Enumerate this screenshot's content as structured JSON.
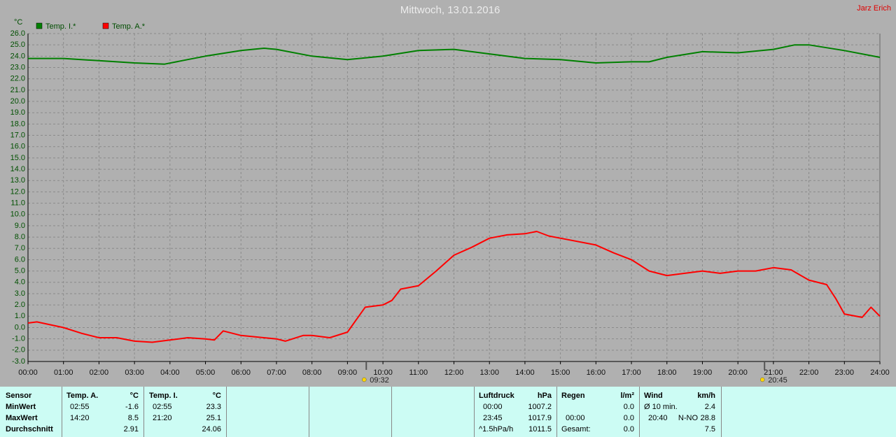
{
  "chart_data": {
    "type": "line",
    "title": "Mittwoch, 13.01.2016",
    "author": "Jarz Erich",
    "y_label": "°C",
    "xlim": [
      0,
      24
    ],
    "xticks": [
      {
        "value": 0,
        "label": "00:00"
      },
      {
        "value": 1,
        "label": "01:00"
      },
      {
        "value": 2,
        "label": "02:00"
      },
      {
        "value": 3,
        "label": "03:00"
      },
      {
        "value": 4,
        "label": "04:00"
      },
      {
        "value": 5,
        "label": "05:00"
      },
      {
        "value": 6,
        "label": "06:00"
      },
      {
        "value": 7,
        "label": "07:00"
      },
      {
        "value": 8,
        "label": "08:00"
      },
      {
        "value": 9,
        "label": "09:00"
      },
      {
        "value": 10,
        "label": "10:00"
      },
      {
        "value": 11,
        "label": "11:00"
      },
      {
        "value": 12,
        "label": "12:00"
      },
      {
        "value": 13,
        "label": "13:00"
      },
      {
        "value": 14,
        "label": "14:00"
      },
      {
        "value": 15,
        "label": "15:00"
      },
      {
        "value": 16,
        "label": "16:00"
      },
      {
        "value": 17,
        "label": "17:00"
      },
      {
        "value": 18,
        "label": "18:00"
      },
      {
        "value": 19,
        "label": "19:00"
      },
      {
        "value": 20,
        "label": "20:00"
      },
      {
        "value": 21,
        "label": "21:00"
      },
      {
        "value": 22,
        "label": "22:00"
      },
      {
        "value": 23,
        "label": "23:00"
      },
      {
        "value": 24,
        "label": "24:00"
      }
    ],
    "ylim": [
      -3,
      26
    ],
    "yticks": [
      {
        "value": -3,
        "label": "-3.0"
      },
      {
        "value": -2,
        "label": "-2.0"
      },
      {
        "value": -1,
        "label": "-1.0"
      },
      {
        "value": 0,
        "label": "0.0"
      },
      {
        "value": 1,
        "label": "1.0"
      },
      {
        "value": 2,
        "label": "2.0"
      },
      {
        "value": 3,
        "label": "3.0"
      },
      {
        "value": 4,
        "label": "4.0"
      },
      {
        "value": 5,
        "label": "5.0"
      },
      {
        "value": 6,
        "label": "6.0"
      },
      {
        "value": 7,
        "label": "7.0"
      },
      {
        "value": 8,
        "label": "8.0"
      },
      {
        "value": 9,
        "label": "9.0"
      },
      {
        "value": 10,
        "label": "10.0"
      },
      {
        "value": 11,
        "label": "11.0"
      },
      {
        "value": 12,
        "label": "12.0"
      },
      {
        "value": 13,
        "label": "13.0"
      },
      {
        "value": 14,
        "label": "14.0"
      },
      {
        "value": 15,
        "label": "15.0"
      },
      {
        "value": 16,
        "label": "16.0"
      },
      {
        "value": 17,
        "label": "17.0"
      },
      {
        "value": 18,
        "label": "18.0"
      },
      {
        "value": 19,
        "label": "19.0"
      },
      {
        "value": 20,
        "label": "20.0"
      },
      {
        "value": 21,
        "label": "21.0"
      },
      {
        "value": 22,
        "label": "22.0"
      },
      {
        "value": 23,
        "label": "23.0"
      },
      {
        "value": 24,
        "label": "24.0"
      },
      {
        "value": 25,
        "label": "25.0"
      },
      {
        "value": 26,
        "label": "26.0"
      }
    ],
    "grid": true,
    "series": [
      {
        "name": "Temp. I.*",
        "color": "#008000",
        "x": [
          0,
          1,
          2,
          3,
          3.85,
          4.5,
          5,
          6,
          6.65,
          7,
          8,
          9,
          10,
          11,
          12,
          13,
          14,
          15,
          16,
          17,
          17.5,
          18,
          19,
          20,
          21,
          21.6,
          22,
          23,
          24
        ],
        "values": [
          23.8,
          23.8,
          23.6,
          23.4,
          23.3,
          23.7,
          24.0,
          24.5,
          24.7,
          24.6,
          24.0,
          23.7,
          24.0,
          24.5,
          24.6,
          24.2,
          23.8,
          23.7,
          23.4,
          23.5,
          23.5,
          23.9,
          24.4,
          24.3,
          24.6,
          25.0,
          25.0,
          24.5,
          23.9
        ]
      },
      {
        "name": "Temp. A.*",
        "color": "#ff0000",
        "x": [
          0,
          0.25,
          1,
          1.5,
          2,
          2.5,
          3,
          3.5,
          4,
          4.5,
          5,
          5.25,
          5.5,
          6,
          7,
          7.25,
          7.75,
          8,
          8.5,
          9,
          9.5,
          10,
          10.25,
          10.5,
          11,
          11.5,
          12,
          12.5,
          13,
          13.5,
          14,
          14.33,
          14.67,
          15,
          16,
          16.5,
          17,
          17.5,
          18,
          18.5,
          19,
          19.5,
          20,
          20.5,
          21,
          21.5,
          22,
          22.5,
          22.75,
          23,
          23.5,
          23.75,
          24
        ],
        "values": [
          0.4,
          0.5,
          0.0,
          -0.5,
          -0.9,
          -0.9,
          -1.2,
          -1.3,
          -1.1,
          -0.9,
          -1.0,
          -1.1,
          -0.3,
          -0.7,
          -1.0,
          -1.2,
          -0.7,
          -0.7,
          -0.9,
          -0.4,
          1.8,
          2.0,
          2.4,
          3.4,
          3.7,
          5.0,
          6.4,
          7.1,
          7.9,
          8.2,
          8.3,
          8.5,
          8.1,
          7.9,
          7.3,
          6.6,
          6.0,
          5.0,
          4.6,
          4.8,
          5.0,
          4.8,
          5.0,
          5.0,
          5.3,
          5.1,
          4.2,
          3.8,
          2.6,
          1.2,
          0.9,
          1.8,
          1.0
        ]
      }
    ],
    "annotations": [
      {
        "x": 9.53,
        "label": "09:32"
      },
      {
        "x": 20.75,
        "label": "20:45"
      }
    ]
  },
  "table": {
    "sensor": {
      "title": "Sensor",
      "rows": [
        "MinWert",
        "MaxWert",
        "Durchschnitt"
      ]
    },
    "temp_a": {
      "title": "Temp. A.",
      "unit": "°C",
      "min_time": "02:55",
      "min": "-1.6",
      "max_time": "14:20",
      "max": "8.5",
      "avg": "2.91"
    },
    "temp_i": {
      "title": "Temp. I.",
      "unit": "°C",
      "min_time": "02:55",
      "min": "23.3",
      "max_time": "21:20",
      "max": "25.1",
      "avg": "24.06"
    },
    "pressure": {
      "title": "Luftdruck",
      "unit": "hPa",
      "min_time": "00:00",
      "min": "1007.2",
      "max_time": "23:45",
      "max": "1017.9",
      "trend": "^1.5hPa/h",
      "avg": "1011.5"
    },
    "rain": {
      "title": "Regen",
      "unit": "l/m²",
      "min": "0.0",
      "max_time": "00:00",
      "max": "0.0",
      "total_label": "Gesamt:",
      "total": "0.0"
    },
    "wind": {
      "title": "Wind",
      "unit": "km/h",
      "avg_label": "Ø 10 min.",
      "avg": "2.4",
      "max_time": "20:40",
      "max_dir": "N-NO",
      "max": "28.8",
      "mean": "7.5"
    }
  }
}
